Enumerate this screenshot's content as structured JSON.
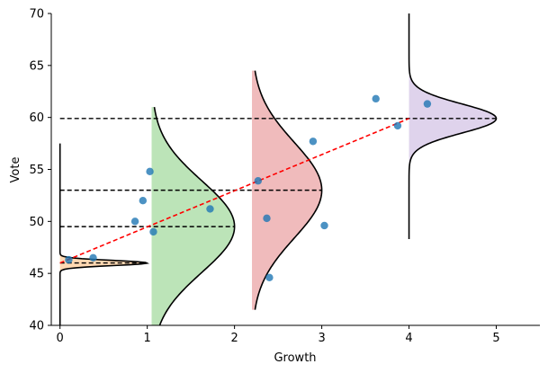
{
  "chart_data": {
    "type": "scatter",
    "title": "",
    "xlabel": "Growth",
    "ylabel": "Vote",
    "xlim": [
      -0.1,
      5.5
    ],
    "ylim": [
      40,
      70
    ],
    "x_ticks": [
      0,
      1,
      2,
      3,
      4,
      5
    ],
    "y_ticks": [
      40,
      45,
      50,
      55,
      60,
      65,
      70
    ],
    "grid": false,
    "spines": "left-bottom",
    "points": {
      "color": "#1f77b4",
      "x": [
        0.1,
        0.38,
        0.86,
        0.95,
        1.03,
        1.07,
        1.72,
        2.27,
        2.37,
        2.4,
        2.9,
        3.03,
        3.62,
        3.87,
        4.21
      ],
      "y": [
        46.3,
        46.5,
        50.0,
        52.0,
        54.8,
        49.0,
        51.2,
        53.9,
        50.3,
        44.6,
        57.7,
        49.6,
        61.8,
        59.2,
        61.3
      ]
    },
    "regression_line": {
      "color": "#ff0000",
      "style": "dashed",
      "x": [
        0,
        4
      ],
      "y": [
        46.0,
        59.9
      ]
    },
    "distributions": [
      {
        "base_x": 0,
        "mean": 46.0,
        "sd": 0.25,
        "amplitude": 1.0,
        "y_range": [
          40,
          57.5
        ],
        "fill": "#ffcc99",
        "fill_y": [
          44.6,
          47.3
        ],
        "mean_line_x": [
          0,
          1.0
        ]
      },
      {
        "base_x": 1.05,
        "mean": 49.5,
        "sd": 4.4,
        "amplitude": 0.95,
        "y_range": [
          40,
          61
        ],
        "fill": "#a6dba0",
        "fill_y": [
          40,
          61
        ],
        "mean_line_x": [
          0,
          2.0
        ]
      },
      {
        "base_x": 2.2,
        "mean": 53.0,
        "sd": 4.6,
        "amplitude": 0.8,
        "y_range": [
          41.5,
          64.5
        ],
        "fill": "#eba4a6",
        "fill_y": [
          41.5,
          64.5
        ],
        "mean_line_x": [
          0,
          3.0
        ]
      },
      {
        "base_x": 4.0,
        "mean": 59.9,
        "sd": 1.4,
        "amplitude": 1.0,
        "y_range": [
          48.3,
          70
        ],
        "fill": "#d4c4e6",
        "fill_y": [
          55.6,
          64.0
        ],
        "mean_line_x": [
          0,
          5.0
        ]
      }
    ]
  }
}
